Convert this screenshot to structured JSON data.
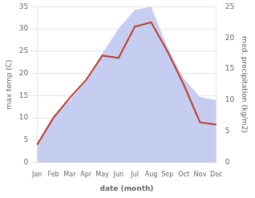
{
  "chart_data": {
    "type": "line",
    "categories": [
      "Jan",
      "Feb",
      "Mar",
      "Apr",
      "May",
      "Jun",
      "Jul",
      "Aug",
      "Sep",
      "Oct",
      "Nov",
      "Dec"
    ],
    "series": [
      {
        "type": "area",
        "color": "#c5cef0",
        "axis": "y2",
        "values": [
          3.0,
          7.5,
          10.0,
          13.0,
          17.5,
          21.5,
          24.5,
          25.0,
          18.5,
          13.5,
          10.5,
          10.0
        ]
      },
      {
        "type": "line",
        "color": "#c0392b",
        "axis": "y",
        "values": [
          4.0,
          10.0,
          14.5,
          18.5,
          24.0,
          23.5,
          30.5,
          31.5,
          25.0,
          17.5,
          9.0,
          8.5
        ]
      }
    ],
    "xlabel": "date (month)",
    "ylabel": "max temp (C)",
    "y2label": "med. precipitation (kg/m2)",
    "ylim": [
      0,
      35
    ],
    "yticks": [
      0,
      5,
      10,
      15,
      20,
      25,
      30,
      35
    ],
    "y2lim": [
      0,
      25
    ],
    "y2ticks": [
      0,
      5,
      10,
      15,
      20,
      25
    ],
    "grid": true
  }
}
